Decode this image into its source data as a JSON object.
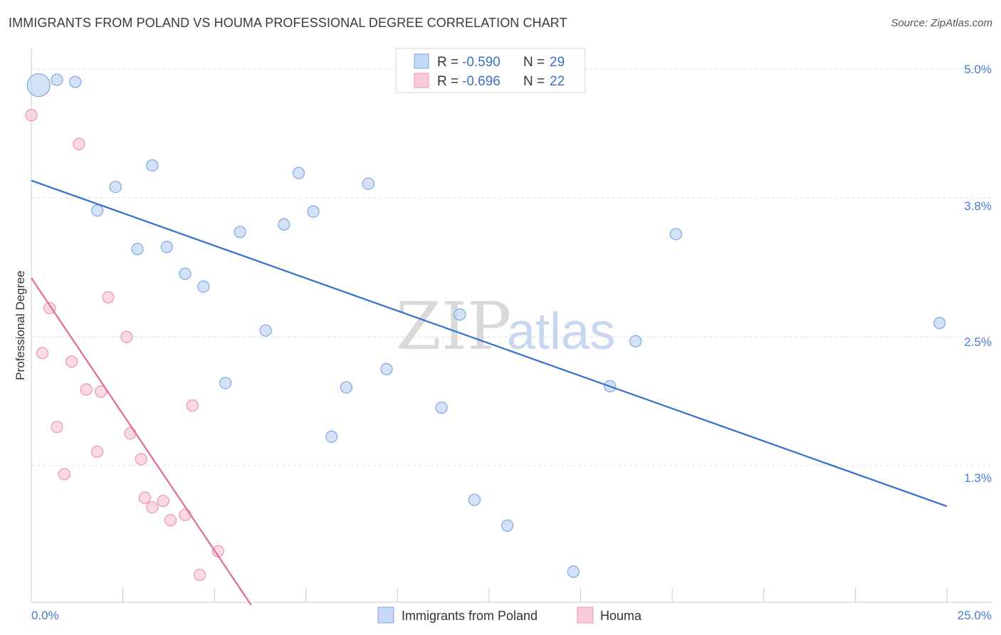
{
  "header": {
    "title": "IMMIGRANTS FROM POLAND VS HOUMA PROFESSIONAL DEGREE CORRELATION CHART",
    "source": "Source: ZipAtlas.com"
  },
  "watermark": {
    "zip": "ZIP",
    "atlas": "atlas"
  },
  "legend_top": {
    "rows": [
      {
        "r_label": "R =",
        "r_value": "-0.590",
        "n_label": "N =",
        "n_value": "29"
      },
      {
        "r_label": "R =",
        "r_value": "-0.696",
        "n_label": "N =",
        "n_value": "22"
      }
    ]
  },
  "legend_bottom": {
    "items": [
      {
        "label": "Immigrants from Poland"
      },
      {
        "label": "Houma"
      }
    ]
  },
  "axes": {
    "ylabel": "Professional Degree",
    "x_ticks": [
      "0.0%",
      "25.0%"
    ],
    "y_ticks": [
      "5.0%",
      "3.8%",
      "2.5%",
      "1.3%"
    ]
  },
  "chart_data": {
    "type": "scatter",
    "title": "IMMIGRANTS FROM POLAND VS HOUMA PROFESSIONAL DEGREE CORRELATION CHART",
    "xlabel": "",
    "ylabel": "Professional Degree",
    "xlim": [
      0,
      25
    ],
    "ylim": [
      0.0,
      5.0
    ],
    "x_unit": "%",
    "y_unit": "%",
    "y_ticks": [
      1.3,
      2.5,
      3.8,
      5.0
    ],
    "grid": true,
    "legend_position": "top-center",
    "colors": {
      "poland_fill": "#c5d8f5",
      "poland_stroke": "#7ea6e0",
      "poland_line": "#2f6fd0",
      "houma_fill": "#f9ccd9",
      "houma_stroke": "#e896b0",
      "houma_line": "#e06a95",
      "axis_label": "#4a7bd0"
    },
    "series": [
      {
        "name": "Immigrants from Poland",
        "r": -0.59,
        "n": 29,
        "trend": {
          "x0": 0.0,
          "y0": 3.96,
          "x1": 25.0,
          "y1": 0.92
        },
        "points": [
          {
            "x": 0.2,
            "y": 4.85,
            "size": "large"
          },
          {
            "x": 0.7,
            "y": 4.9
          },
          {
            "x": 1.2,
            "y": 4.88
          },
          {
            "x": 3.3,
            "y": 4.1
          },
          {
            "x": 2.3,
            "y": 3.9
          },
          {
            "x": 1.8,
            "y": 3.68
          },
          {
            "x": 2.9,
            "y": 3.32
          },
          {
            "x": 3.7,
            "y": 3.34
          },
          {
            "x": 4.2,
            "y": 3.09
          },
          {
            "x": 4.7,
            "y": 2.97
          },
          {
            "x": 5.7,
            "y": 3.48
          },
          {
            "x": 6.9,
            "y": 3.55
          },
          {
            "x": 7.7,
            "y": 3.67
          },
          {
            "x": 7.3,
            "y": 4.03
          },
          {
            "x": 9.2,
            "y": 3.93
          },
          {
            "x": 6.4,
            "y": 2.56
          },
          {
            "x": 5.3,
            "y": 2.07
          },
          {
            "x": 8.6,
            "y": 2.03
          },
          {
            "x": 9.7,
            "y": 2.2
          },
          {
            "x": 11.7,
            "y": 2.71
          },
          {
            "x": 8.2,
            "y": 1.57
          },
          {
            "x": 11.2,
            "y": 1.84
          },
          {
            "x": 12.1,
            "y": 0.98
          },
          {
            "x": 13.0,
            "y": 0.74
          },
          {
            "x": 14.8,
            "y": 0.31
          },
          {
            "x": 15.8,
            "y": 2.04
          },
          {
            "x": 16.5,
            "y": 2.46
          },
          {
            "x": 17.6,
            "y": 3.46
          },
          {
            "x": 24.8,
            "y": 2.63
          }
        ]
      },
      {
        "name": "Houma",
        "r": -0.696,
        "n": 22,
        "trend": {
          "x0": 0.0,
          "y0": 3.05,
          "x1": 6.0,
          "y1": 0.0
        },
        "points": [
          {
            "x": 0.0,
            "y": 4.57
          },
          {
            "x": 1.3,
            "y": 4.3
          },
          {
            "x": 0.5,
            "y": 2.77
          },
          {
            "x": 2.1,
            "y": 2.87
          },
          {
            "x": 0.3,
            "y": 2.35
          },
          {
            "x": 1.1,
            "y": 2.27
          },
          {
            "x": 2.6,
            "y": 2.5
          },
          {
            "x": 1.5,
            "y": 2.01
          },
          {
            "x": 1.9,
            "y": 1.99
          },
          {
            "x": 4.4,
            "y": 1.86
          },
          {
            "x": 0.7,
            "y": 1.66
          },
          {
            "x": 2.7,
            "y": 1.6
          },
          {
            "x": 1.8,
            "y": 1.43
          },
          {
            "x": 3.0,
            "y": 1.36
          },
          {
            "x": 0.9,
            "y": 1.22
          },
          {
            "x": 3.1,
            "y": 1.0
          },
          {
            "x": 3.6,
            "y": 0.97
          },
          {
            "x": 3.3,
            "y": 0.91
          },
          {
            "x": 3.8,
            "y": 0.79
          },
          {
            "x": 4.2,
            "y": 0.84
          },
          {
            "x": 5.1,
            "y": 0.5
          },
          {
            "x": 4.6,
            "y": 0.28
          }
        ]
      }
    ]
  }
}
